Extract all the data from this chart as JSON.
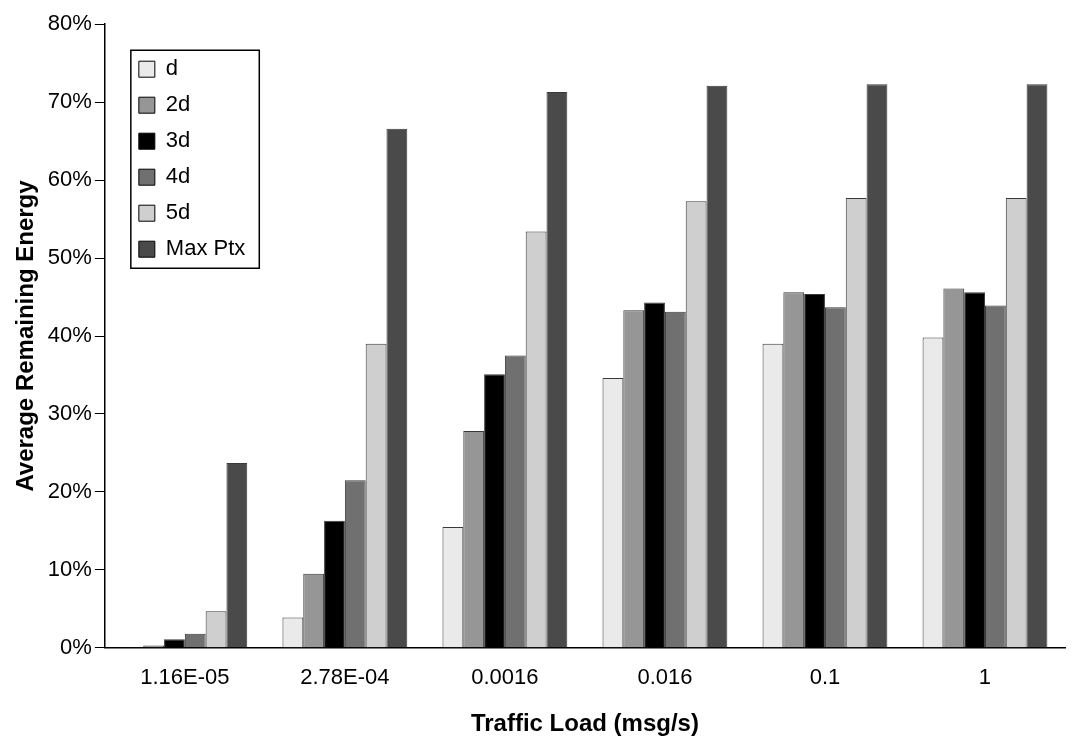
{
  "chart_data": {
    "type": "bar",
    "xlabel": "Traffic Load (msg/s)",
    "ylabel": "Average Remaining Energy",
    "categories": [
      "1.16E-05",
      "2.78E-04",
      "0.0016",
      "0.016",
      "0.1",
      "1"
    ],
    "series": [
      {
        "name": "d",
        "color": "#eaeaea",
        "values": [
          0.1,
          3.9,
          15.5,
          34.6,
          39,
          39.8
        ]
      },
      {
        "name": "2d",
        "color": "#969696",
        "values": [
          0.3,
          9.5,
          27.8,
          43.3,
          45.6,
          46.1
        ]
      },
      {
        "name": "3d",
        "color": "#000000",
        "values": [
          1.1,
          16.3,
          35.1,
          44.3,
          45.4,
          45.6
        ]
      },
      {
        "name": "4d",
        "color": "#707070",
        "values": [
          1.8,
          21.5,
          37.5,
          43.1,
          43.7,
          43.9
        ]
      },
      {
        "name": "5d",
        "color": "#cfcfcf",
        "values": [
          4.7,
          39,
          53.4,
          57.3,
          57.7,
          57.7
        ]
      },
      {
        "name": "Max Ptx",
        "color": "#4a4a4a",
        "values": [
          23.7,
          66.6,
          71.3,
          72.1,
          72.3,
          72.3
        ]
      }
    ],
    "ylim": [
      0,
      80
    ],
    "yticks": [
      {
        "value": 0,
        "label": "0%"
      },
      {
        "value": 10,
        "label": "10%"
      },
      {
        "value": 20,
        "label": "20%"
      },
      {
        "value": 30,
        "label": "30%"
      },
      {
        "value": 40,
        "label": "40%"
      },
      {
        "value": 50,
        "label": "50%"
      },
      {
        "value": 60,
        "label": "60%"
      },
      {
        "value": 70,
        "label": "70%"
      },
      {
        "value": 80,
        "label": "80%"
      }
    ],
    "grid": false,
    "legend": "top left"
  }
}
